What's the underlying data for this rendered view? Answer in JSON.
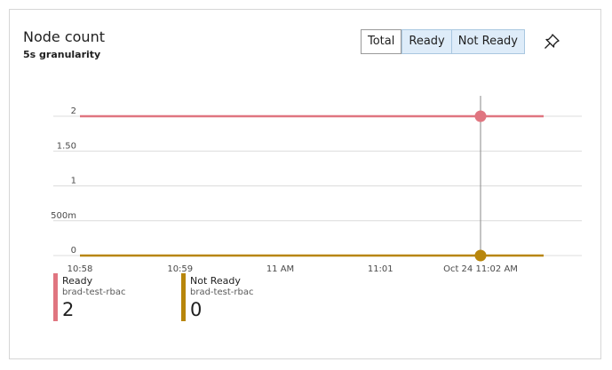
{
  "card": {
    "title": "Node count",
    "subtitle": "5s granularity"
  },
  "toggle": {
    "options": [
      "Total",
      "Ready",
      "Not Ready"
    ],
    "selected": [
      "Ready",
      "Not Ready"
    ]
  },
  "pin_icon": "pin-icon",
  "colors": {
    "ready": "#e07580",
    "not_ready": "#b8860b",
    "cursor_line": "#8a8a8a",
    "grid": "#dcdcdc"
  },
  "legend": [
    {
      "name": "Ready",
      "resource": "brad-test-rbac",
      "value": "2"
    },
    {
      "name": "Not Ready",
      "resource": "brad-test-rbac",
      "value": "0"
    }
  ],
  "chart_data": {
    "type": "line",
    "title": "",
    "xlabel": "",
    "ylabel": "",
    "ylim": [
      0,
      2
    ],
    "y_ticks": [
      "0",
      "500m",
      "1",
      "1.50",
      "2"
    ],
    "y_tick_values": [
      0,
      0.5,
      1,
      1.5,
      2
    ],
    "x_ticks": [
      "10:58",
      "10:59",
      "11 AM",
      "11:01",
      "Oct 24 11:02 AM"
    ],
    "x_tick_minutes": [
      0,
      1,
      2,
      3,
      4
    ],
    "x_range_minutes": [
      0,
      4.63
    ],
    "hover_time_label": "Oct 24 11:02 AM",
    "hover_x_minutes": 4,
    "grid": true,
    "series": [
      {
        "name": "Ready",
        "x_minutes": [
          0,
          4.63
        ],
        "values": [
          2,
          2
        ]
      },
      {
        "name": "Not Ready",
        "x_minutes": [
          0,
          4.63
        ],
        "values": [
          0,
          0
        ]
      }
    ]
  }
}
